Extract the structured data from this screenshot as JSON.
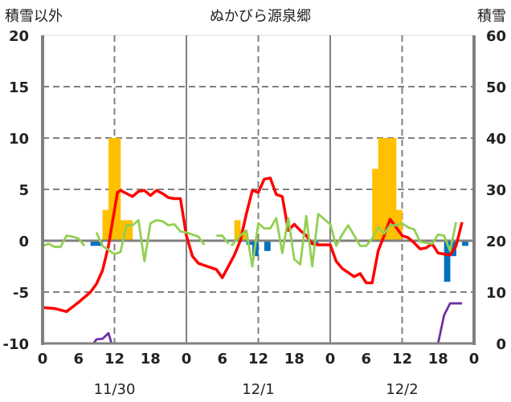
{
  "chart_data": {
    "type": "bar+line",
    "title": "ぬかびら源泉郷",
    "ylabel_left": "積雪以外",
    "ylabel_right": "積雪",
    "ylim_left": [
      -10,
      20
    ],
    "ylim_right": [
      0,
      60
    ],
    "yticks_left": [
      "20",
      "15",
      "10",
      "5",
      "0",
      "-5",
      "-10"
    ],
    "yticks_right": [
      "60",
      "50",
      "40",
      "30",
      "20",
      "10",
      "0"
    ],
    "xlim_hours": [
      0,
      72
    ],
    "xtick_labels": [
      "0",
      "6",
      "12",
      "18",
      "0",
      "6",
      "12",
      "18",
      "0",
      "6",
      "12",
      "18",
      "0"
    ],
    "date_labels": [
      "11/30",
      "12/1",
      "12/2"
    ],
    "grid": true,
    "colors": {
      "orange": "#FFC000",
      "blue": "#0070C0",
      "red": "#FF0000",
      "green": "#92D050",
      "purple": "#7030A0"
    },
    "series": [
      {
        "name": "orange-bars",
        "axis": "left",
        "type": "bar",
        "color": "#FFC000",
        "points": [
          [
            10,
            3
          ],
          [
            11,
            10
          ],
          [
            12,
            10
          ],
          [
            13,
            2
          ],
          [
            14,
            2
          ],
          [
            32,
            2
          ],
          [
            33,
            1
          ],
          [
            55,
            7
          ],
          [
            56,
            10
          ],
          [
            57,
            10
          ],
          [
            58,
            10
          ],
          [
            59,
            3
          ]
        ]
      },
      {
        "name": "blue-bars",
        "axis": "left",
        "type": "bar",
        "color": "#0070C0",
        "points": [
          [
            8,
            -0.5
          ],
          [
            9,
            -0.5
          ],
          [
            34,
            -0.4
          ],
          [
            35,
            -1.5
          ],
          [
            37,
            -1
          ],
          [
            45,
            -0.3
          ],
          [
            67,
            -4
          ],
          [
            68,
            -1.5
          ],
          [
            70,
            -0.5
          ]
        ]
      },
      {
        "name": "red-line",
        "axis": "left",
        "type": "line",
        "color": "#FF0000",
        "points": [
          [
            0,
            -6.5
          ],
          [
            2,
            -6.6
          ],
          [
            4,
            -6.9
          ],
          [
            6,
            -6
          ],
          [
            8,
            -5
          ],
          [
            9,
            -4.2
          ],
          [
            10,
            -2.9
          ],
          [
            11,
            -0.5
          ],
          [
            12,
            3
          ],
          [
            12.5,
            4.7
          ],
          [
            13,
            4.9
          ],
          [
            14,
            4.6
          ],
          [
            15,
            4.3
          ],
          [
            16,
            4.8
          ],
          [
            17,
            4.9
          ],
          [
            18,
            4.4
          ],
          [
            19,
            4.9
          ],
          [
            20,
            4.6
          ],
          [
            21,
            4.2
          ],
          [
            22,
            4.1
          ],
          [
            23,
            4.1
          ],
          [
            24,
            0.5
          ],
          [
            25,
            -1.5
          ],
          [
            26,
            -2.2
          ],
          [
            27,
            -2.4
          ],
          [
            28,
            -2.6
          ],
          [
            29,
            -2.8
          ],
          [
            30,
            -3.6
          ],
          [
            31,
            -2.5
          ],
          [
            32,
            -1.4
          ],
          [
            33,
            0
          ],
          [
            34,
            2.6
          ],
          [
            35,
            4.9
          ],
          [
            36,
            4.7
          ],
          [
            37,
            6
          ],
          [
            38,
            6.1
          ],
          [
            39,
            4.5
          ],
          [
            40,
            4.3
          ],
          [
            41,
            1
          ],
          [
            42,
            1.6
          ],
          [
            43,
            1
          ],
          [
            44,
            0.5
          ],
          [
            45,
            -0.3
          ],
          [
            46,
            -0.4
          ],
          [
            47,
            -0.4
          ],
          [
            48,
            -0.4
          ],
          [
            49,
            -2
          ],
          [
            50,
            -2.7
          ],
          [
            51,
            -3.1
          ],
          [
            52,
            -3.5
          ],
          [
            53,
            -3.2
          ],
          [
            54,
            -4.1
          ],
          [
            55,
            -4.1
          ],
          [
            56,
            -1
          ],
          [
            57,
            0.5
          ],
          [
            58,
            2.1
          ],
          [
            59,
            1.3
          ],
          [
            60,
            0.5
          ],
          [
            61,
            0.3
          ],
          [
            62,
            -0.2
          ],
          [
            63,
            -0.8
          ],
          [
            64,
            -0.7
          ],
          [
            65,
            -0.3
          ],
          [
            66,
            -1.2
          ],
          [
            67,
            -1.3
          ],
          [
            68,
            -1.4
          ],
          [
            69,
            -0.5
          ],
          [
            70,
            1.8
          ]
        ]
      },
      {
        "name": "green-line",
        "axis": "left",
        "type": "line",
        "color": "#92D050",
        "segments": [
          [
            [
              0,
              -0.5
            ],
            [
              1,
              -0.3
            ],
            [
              2,
              -0.6
            ],
            [
              3,
              -0.6
            ],
            [
              4,
              0.5
            ],
            [
              5,
              0.4
            ],
            [
              6,
              0.2
            ],
            [
              7,
              -0.5
            ]
          ],
          [
            [
              9,
              0.8
            ],
            [
              10,
              -0.5
            ],
            [
              11,
              -0.9
            ],
            [
              12,
              -1.3
            ],
            [
              13,
              -1.1
            ],
            [
              14,
              1.5
            ],
            [
              15,
              1.5
            ],
            [
              16,
              2
            ],
            [
              17,
              -2
            ],
            [
              18,
              1.7
            ],
            [
              19,
              2
            ],
            [
              20,
              1.9
            ],
            [
              21,
              1.5
            ],
            [
              22,
              1.6
            ],
            [
              23,
              0.9
            ],
            [
              24,
              0.8
            ],
            [
              25,
              0.6
            ],
            [
              26,
              0.4
            ],
            [
              27,
              -0.4
            ]
          ],
          [
            [
              29,
              0.5
            ],
            [
              30,
              0.5
            ],
            [
              31,
              -0.3
            ]
          ],
          [
            [
              31.5,
              -0.5
            ],
            [
              33,
              0.5
            ],
            [
              34,
              1
            ],
            [
              35,
              -2.5
            ],
            [
              36,
              1.7
            ],
            [
              37,
              1.2
            ],
            [
              38,
              1.2
            ],
            [
              39,
              2.2
            ],
            [
              40,
              -1.2
            ],
            [
              41,
              2.2
            ],
            [
              42,
              -1.8
            ],
            [
              43,
              -2.3
            ],
            [
              44,
              2.4
            ],
            [
              45,
              -2.5
            ],
            [
              46,
              2.6
            ],
            [
              47,
              2.1
            ],
            [
              48,
              1.6
            ],
            [
              49,
              -0.5
            ],
            [
              50,
              0.6
            ],
            [
              51,
              1.5
            ],
            [
              52,
              0.5
            ],
            [
              53,
              -0.5
            ],
            [
              54,
              -0.5
            ],
            [
              55,
              0.2
            ],
            [
              56,
              1.3
            ],
            [
              57,
              0.7
            ],
            [
              58,
              1.5
            ],
            [
              59,
              1.5
            ],
            [
              60,
              1.7
            ],
            [
              61,
              1.3
            ],
            [
              62,
              1.1
            ],
            [
              63,
              -0.1
            ],
            [
              64,
              -0.2
            ],
            [
              65,
              -0.3
            ],
            [
              66,
              0.6
            ],
            [
              67,
              0.5
            ],
            [
              68,
              -1
            ],
            [
              69,
              1.8
            ]
          ]
        ]
      },
      {
        "name": "purple-line",
        "axis": "right",
        "type": "line",
        "color": "#7030A0",
        "points": [
          [
            0,
            0
          ],
          [
            8.5,
            0
          ],
          [
            9,
            0.8
          ],
          [
            10,
            0.9
          ],
          [
            11,
            2
          ],
          [
            11.5,
            0
          ],
          [
            66,
            0
          ],
          [
            67,
            5.5
          ],
          [
            68,
            7.8
          ],
          [
            70,
            7.8
          ]
        ]
      }
    ]
  }
}
